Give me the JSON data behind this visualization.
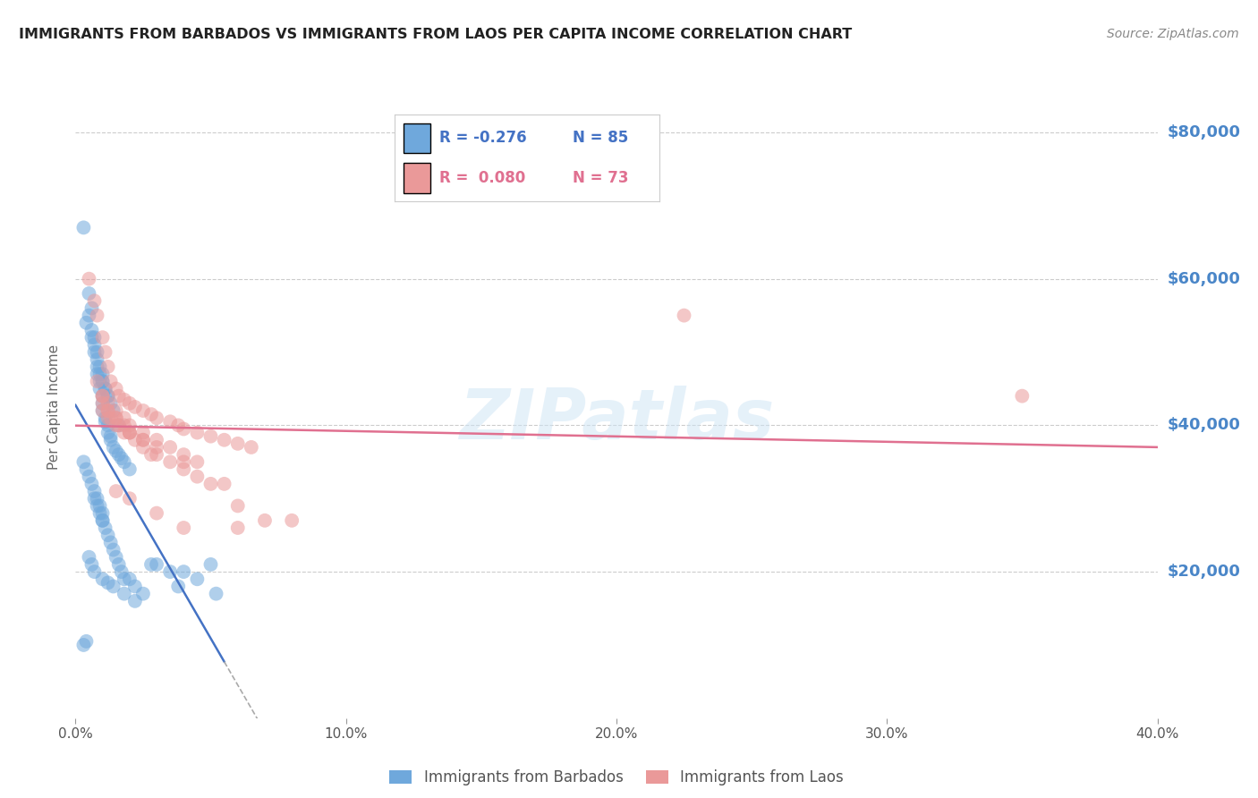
{
  "title": "IMMIGRANTS FROM BARBADOS VS IMMIGRANTS FROM LAOS PER CAPITA INCOME CORRELATION CHART",
  "source": "Source: ZipAtlas.com",
  "ylabel_label": "Per Capita Income",
  "xlim": [
    0.0,
    0.4
  ],
  "ylim": [
    0,
    85000
  ],
  "yticks": [
    0,
    20000,
    40000,
    60000,
    80000
  ],
  "xticks": [
    0.0,
    0.1,
    0.2,
    0.3,
    0.4
  ],
  "barbados_color": "#6fa8dc",
  "laos_color": "#ea9999",
  "barbados_line_color": "#4472c4",
  "laos_line_color": "#e07090",
  "barbados_R": -0.276,
  "barbados_N": 85,
  "laos_R": 0.08,
  "laos_N": 73,
  "watermark": "ZIPatlas",
  "background_color": "#ffffff",
  "grid_color": "#cccccc",
  "axis_label_color": "#4a86c8",
  "title_color": "#222222",
  "barbados_x": [
    0.003,
    0.005,
    0.006,
    0.007,
    0.008,
    0.008,
    0.009,
    0.009,
    0.01,
    0.01,
    0.01,
    0.011,
    0.011,
    0.012,
    0.012,
    0.013,
    0.013,
    0.014,
    0.015,
    0.016,
    0.017,
    0.018,
    0.02,
    0.005,
    0.006,
    0.007,
    0.008,
    0.009,
    0.01,
    0.01,
    0.011,
    0.012,
    0.013,
    0.014,
    0.016,
    0.004,
    0.006,
    0.007,
    0.008,
    0.009,
    0.01,
    0.011,
    0.012,
    0.003,
    0.004,
    0.005,
    0.006,
    0.007,
    0.007,
    0.008,
    0.008,
    0.009,
    0.009,
    0.01,
    0.01,
    0.01,
    0.011,
    0.012,
    0.013,
    0.014,
    0.015,
    0.016,
    0.017,
    0.018,
    0.02,
    0.022,
    0.025,
    0.03,
    0.035,
    0.04,
    0.045,
    0.05,
    0.003,
    0.004,
    0.005,
    0.006,
    0.007,
    0.01,
    0.012,
    0.014,
    0.018,
    0.022,
    0.028,
    0.038,
    0.052
  ],
  "barbados_y": [
    67000,
    58000,
    56000,
    52000,
    50000,
    47000,
    46000,
    45000,
    44000,
    43000,
    42000,
    41000,
    40500,
    40000,
    39000,
    38500,
    38000,
    37000,
    36500,
    36000,
    35500,
    35000,
    34000,
    55000,
    53000,
    51000,
    49000,
    48000,
    47000,
    46000,
    45000,
    44000,
    43000,
    42000,
    40000,
    54000,
    52000,
    50000,
    48000,
    47000,
    46000,
    45000,
    44000,
    35000,
    34000,
    33000,
    32000,
    31000,
    30000,
    30000,
    29000,
    29000,
    28000,
    28000,
    27000,
    27000,
    26000,
    25000,
    24000,
    23000,
    22000,
    21000,
    20000,
    19000,
    19000,
    18000,
    17000,
    21000,
    20000,
    20000,
    19000,
    21000,
    10000,
    10500,
    22000,
    21000,
    20000,
    19000,
    18500,
    18000,
    17000,
    16000,
    21000,
    18000,
    17000
  ],
  "laos_x": [
    0.005,
    0.007,
    0.008,
    0.01,
    0.011,
    0.012,
    0.013,
    0.015,
    0.016,
    0.018,
    0.02,
    0.022,
    0.025,
    0.028,
    0.03,
    0.035,
    0.038,
    0.04,
    0.045,
    0.05,
    0.055,
    0.06,
    0.065,
    0.008,
    0.01,
    0.012,
    0.015,
    0.018,
    0.02,
    0.025,
    0.01,
    0.012,
    0.015,
    0.018,
    0.02,
    0.025,
    0.03,
    0.035,
    0.04,
    0.045,
    0.01,
    0.012,
    0.015,
    0.02,
    0.025,
    0.03,
    0.04,
    0.055,
    0.01,
    0.013,
    0.016,
    0.02,
    0.025,
    0.03,
    0.04,
    0.05,
    0.06,
    0.012,
    0.015,
    0.018,
    0.022,
    0.028,
    0.035,
    0.045,
    0.07,
    0.08,
    0.35,
    0.225,
    0.015,
    0.02,
    0.03,
    0.04,
    0.06
  ],
  "laos_y": [
    60000,
    57000,
    55000,
    52000,
    50000,
    48000,
    46000,
    45000,
    44000,
    43500,
    43000,
    42500,
    42000,
    41500,
    41000,
    40500,
    40000,
    39500,
    39000,
    38500,
    38000,
    37500,
    37000,
    46000,
    44000,
    42000,
    41000,
    40000,
    39000,
    38000,
    44000,
    43000,
    42000,
    41000,
    40000,
    39000,
    38000,
    37000,
    36000,
    35000,
    43000,
    42000,
    41000,
    39000,
    38000,
    37000,
    35000,
    32000,
    42000,
    41000,
    40000,
    39000,
    37000,
    36000,
    34000,
    32000,
    29000,
    41000,
    40000,
    39000,
    38000,
    36000,
    35000,
    33000,
    27000,
    27000,
    44000,
    55000,
    31000,
    30000,
    28000,
    26000,
    26000
  ]
}
